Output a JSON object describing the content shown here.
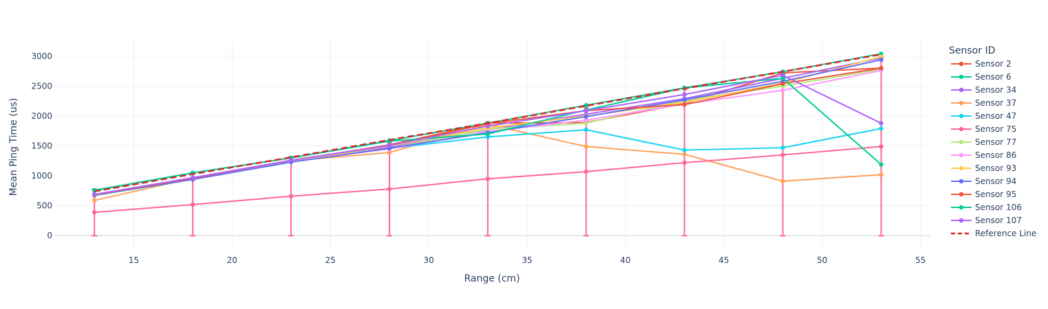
{
  "chart_data": {
    "type": "line",
    "xlabel": "Range (cm)",
    "ylabel": "Mean Ping Time (us)",
    "xlim": [
      11,
      55.5
    ],
    "ylim": [
      -250,
      3250
    ],
    "x_ticks": [
      15,
      20,
      25,
      30,
      35,
      40,
      45,
      50,
      55
    ],
    "y_ticks": [
      0,
      500,
      1000,
      1500,
      2000,
      2500,
      3000
    ],
    "grid": true,
    "legend_title": "Sensor ID",
    "legend_position": "right",
    "x": [
      13,
      18,
      23,
      28,
      33,
      38,
      43,
      48,
      53
    ],
    "series": [
      {
        "name": "Sensor 2",
        "color": "#EF553B",
        "values": [
          680,
          960,
          1250,
          1520,
          1880,
          1890,
          2210,
          2720,
          2800
        ]
      },
      {
        "name": "Sensor 6",
        "color": "#00CC96",
        "values": [
          760,
          1050,
          1300,
          1590,
          1880,
          2180,
          2470,
          2740,
          3040
        ]
      },
      {
        "name": "Sensor 34",
        "color": "#AB63FA",
        "values": [
          670,
          960,
          1250,
          1480,
          1770,
          2030,
          2290,
          2630,
          2970
        ]
      },
      {
        "name": "Sensor 37",
        "color": "#FFA15A",
        "values": [
          590,
          960,
          1250,
          1390,
          1860,
          1490,
          1360,
          910,
          1020
        ]
      },
      {
        "name": "Sensor 47",
        "color": "#19D3F3",
        "values": [
          670,
          940,
          1230,
          1460,
          1650,
          1770,
          1430,
          1470,
          1790
        ]
      },
      {
        "name": "Sensor 75",
        "color": "#FF6692",
        "values": [
          390,
          520,
          660,
          780,
          950,
          1070,
          1220,
          1350,
          1490
        ]
      },
      {
        "name": "Sensor 77",
        "color": "#B6E880",
        "values": [
          680,
          960,
          1250,
          1460,
          1780,
          1880,
          2260,
          2500,
          2780
        ]
      },
      {
        "name": "Sensor 86",
        "color": "#FF97FF",
        "values": [
          680,
          960,
          1250,
          1450,
          1740,
          1930,
          2200,
          2430,
          2760
        ]
      },
      {
        "name": "Sensor 93",
        "color": "#FECB52",
        "values": [
          680,
          960,
          1250,
          1500,
          1800,
          2000,
          2230,
          2550,
          2990
        ]
      },
      {
        "name": "Sensor 94",
        "color": "#636EFA",
        "values": [
          680,
          940,
          1230,
          1460,
          1720,
          1990,
          2270,
          2580,
          2940
        ]
      },
      {
        "name": "Sensor 95",
        "color": "#EF553B",
        "values": [
          680,
          960,
          1260,
          1510,
          1870,
          2090,
          2190,
          2540,
          2800
        ]
      },
      {
        "name": "Sensor 106",
        "color": "#00CC96",
        "values": [
          750,
          1050,
          1300,
          1580,
          1700,
          2100,
          2470,
          2630,
          1190
        ]
      },
      {
        "name": "Sensor 107",
        "color": "#AB63FA",
        "values": [
          690,
          970,
          1260,
          1510,
          1830,
          2090,
          2360,
          2680,
          1880
        ]
      },
      {
        "name": "Reference Line",
        "color": "#D62728",
        "dash": true,
        "values": [
          740,
          1030,
          1310,
          1600,
          1880,
          2170,
          2460,
          2740,
          3030
        ]
      }
    ]
  }
}
